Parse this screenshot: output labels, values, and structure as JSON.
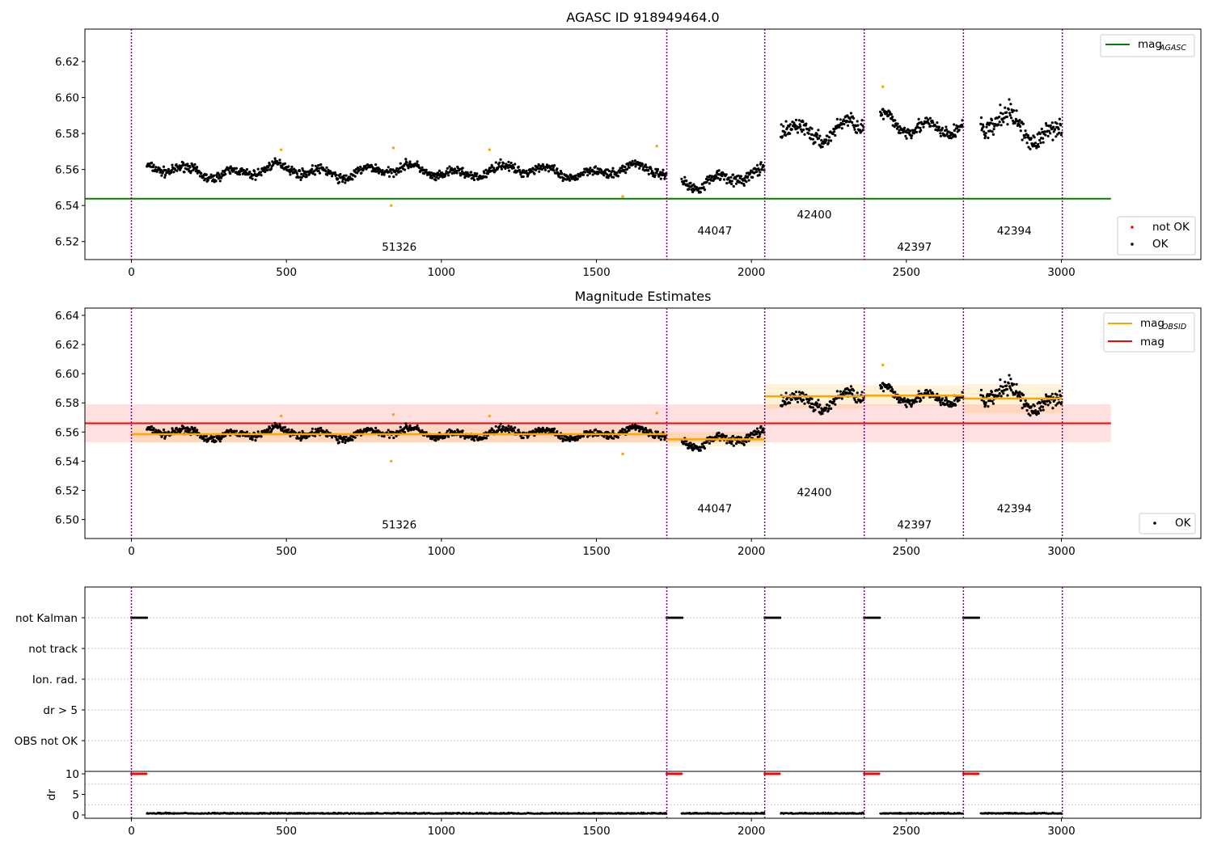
{
  "chart_data": [
    {
      "type": "scatter",
      "title": "AGASC ID 918949464.0",
      "xlim": [
        -150,
        3450
      ],
      "ylim": [
        6.51,
        6.638
      ],
      "xticks": [
        0,
        500,
        1000,
        1500,
        2000,
        2500,
        3000
      ],
      "yticks": [
        6.52,
        6.54,
        6.56,
        6.58,
        6.6,
        6.62
      ],
      "obsid_boundaries": [
        0,
        1727,
        2043,
        2364,
        2684,
        3003
      ],
      "obsid_labels": [
        {
          "x": 864,
          "y": 6.515,
          "text": "51326"
        },
        {
          "x": 1882,
          "y": 6.524,
          "text": "44047"
        },
        {
          "x": 2203,
          "y": 6.533,
          "text": "42400"
        },
        {
          "x": 2526,
          "y": 6.515,
          "text": "42397"
        },
        {
          "x": 2848,
          "y": 6.524,
          "text": "42394"
        }
      ],
      "reference_line": {
        "y": 6.5438,
        "x": [
          -150,
          3160
        ],
        "color": "#008000"
      },
      "segments": [
        {
          "x0": 50,
          "x1": 1727,
          "mean": 6.559,
          "amp": 0.004
        },
        {
          "x0": 1775,
          "x1": 2043,
          "mean": 6.555,
          "amp": 0.005
        },
        {
          "x0": 2095,
          "x1": 2364,
          "mean": 6.583,
          "amp": 0.007
        },
        {
          "x0": 2416,
          "x1": 2684,
          "mean": 6.585,
          "amp": 0.006
        },
        {
          "x0": 2740,
          "x1": 3003,
          "mean": 6.583,
          "amp": 0.009
        }
      ],
      "outliers": [
        {
          "x": 483,
          "y": 6.571
        },
        {
          "x": 845,
          "y": 6.572
        },
        {
          "x": 838,
          "y": 6.54
        },
        {
          "x": 1155,
          "y": 6.571
        },
        {
          "x": 1585,
          "y": 6.545
        },
        {
          "x": 1695,
          "y": 6.573
        },
        {
          "x": 2424,
          "y": 6.606
        }
      ],
      "legend_upper": [
        {
          "label": "mag",
          "sub": "AGASC",
          "color": "#008000"
        }
      ],
      "legend_lower": [
        {
          "label": "not OK",
          "color": "#ff0000"
        },
        {
          "label": "OK",
          "color": "#000000"
        }
      ]
    },
    {
      "type": "scatter",
      "title": "Magnitude Estimates",
      "xlim": [
        -150,
        3450
      ],
      "ylim": [
        6.487,
        6.645
      ],
      "xticks": [
        0,
        500,
        1000,
        1500,
        2000,
        2500,
        3000
      ],
      "yticks": [
        6.5,
        6.52,
        6.54,
        6.56,
        6.58,
        6.6,
        6.62,
        6.64
      ],
      "obsid_labels": [
        {
          "x": 864,
          "y": 6.494,
          "text": "51326"
        },
        {
          "x": 1882,
          "y": 6.505,
          "text": "44047"
        },
        {
          "x": 2203,
          "y": 6.516,
          "text": "42400"
        },
        {
          "x": 2526,
          "y": 6.494,
          "text": "42397"
        },
        {
          "x": 2848,
          "y": 6.505,
          "text": "42394"
        }
      ],
      "mag_line": {
        "y": 6.566,
        "band": [
          6.553,
          6.579
        ],
        "x": [
          -150,
          3160
        ],
        "color": "#ff0000"
      },
      "obsid_means": [
        {
          "x0": 0,
          "x1": 1727,
          "y": 6.5585,
          "band": [
            6.553,
            6.564
          ]
        },
        {
          "x0": 1727,
          "x1": 2043,
          "y": 6.555,
          "band": [
            6.55,
            6.56
          ]
        },
        {
          "x0": 2043,
          "x1": 2364,
          "y": 6.5845,
          "band": [
            6.576,
            6.593
          ]
        },
        {
          "x0": 2364,
          "x1": 2684,
          "y": 6.585,
          "band": [
            6.578,
            6.592
          ]
        },
        {
          "x0": 2684,
          "x1": 3003,
          "y": 6.583,
          "band": [
            6.573,
            6.593
          ]
        }
      ],
      "legend_upper": [
        {
          "label": "mag",
          "sub": "OBSID",
          "color": "#ffa500"
        },
        {
          "label": "mag",
          "sub": "",
          "color": "#ff0000"
        }
      ],
      "legend_lower": [
        {
          "label": "OK",
          "color": "#000000"
        }
      ]
    },
    {
      "type": "scatter",
      "title": "",
      "categories": [
        "not Kalman",
        "not track",
        "Ion. rad.",
        "dr > 5",
        "OBS not OK"
      ],
      "flag_ranges": [
        [
          0,
          50
        ],
        [
          1727,
          1777
        ],
        [
          2043,
          2093
        ],
        [
          2364,
          2414
        ],
        [
          2684,
          2734
        ]
      ],
      "flag_category": "not Kalman"
    },
    {
      "type": "scatter",
      "ylabel": "dr",
      "xlim": [
        -150,
        3450
      ],
      "ylim": [
        -0.8,
        10.6
      ],
      "yticks": [
        0,
        5,
        10
      ],
      "xticks": [
        0,
        500,
        1000,
        1500,
        2000,
        2500,
        3000
      ],
      "clipped_value": 10,
      "clipped_ranges": [
        [
          0,
          50
        ],
        [
          1727,
          1777
        ],
        [
          2043,
          2093
        ],
        [
          2364,
          2414
        ],
        [
          2684,
          2734
        ]
      ],
      "baseline_value": 0.3
    }
  ],
  "colors": {
    "ok": "#000000",
    "not_ok": "#ff0000",
    "outlier": "#ffa500",
    "agasc": "#008000",
    "boundary": "#800080"
  }
}
